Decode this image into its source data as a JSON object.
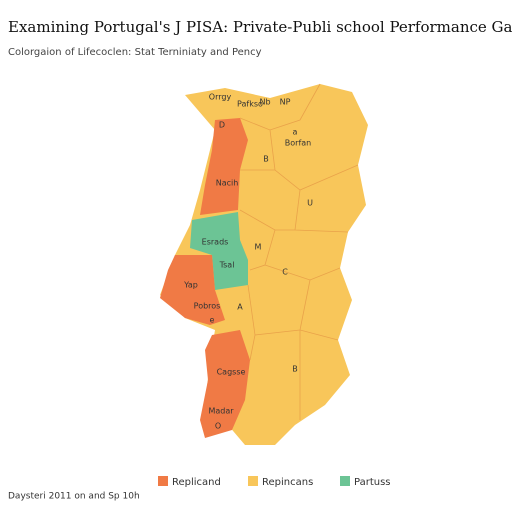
{
  "header": {
    "title": "Examining Portugal's J PISA: Private-Publi school Performance Gap",
    "subtitle": "Colorgaion of Lifecoclen: Stat Terniniaty and Pency"
  },
  "map": {
    "labels": [
      "Orrgy",
      "Pafkso",
      "Nb",
      "NP",
      "D",
      "a",
      "Borfan",
      "B",
      "Nacih",
      "U",
      "Esrads",
      "M",
      "Tsal",
      "C",
      "Yap",
      "Pobros",
      "A",
      "e",
      "Cagsse",
      "B",
      "Madar",
      "O"
    ]
  },
  "legend": {
    "items": [
      {
        "name": "Replicand",
        "color": "#f07a45"
      },
      {
        "name": "Repincans",
        "color": "#f8c65a"
      },
      {
        "name": "Partuss",
        "color": "#6cc495"
      }
    ]
  },
  "footer": {
    "note": "Daysteri 2011 on and Sp 10h"
  }
}
